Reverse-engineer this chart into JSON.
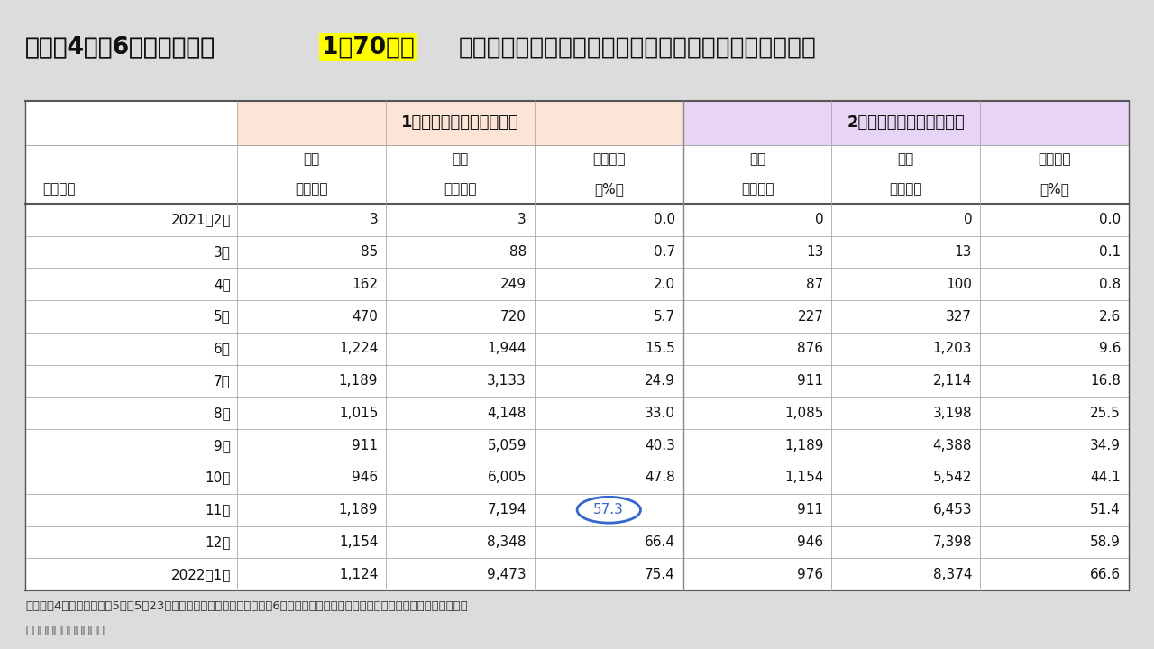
{
  "title_part1": "（図补4）　6月初め以降、",
  "title_highlight": "1日70万回",
  "title_part2": "の接種を継続的に実施するケースでの接種回数・接種率",
  "header1": "1回目のワクチン接種者数",
  "header2": "2回目のワクチン接種者数",
  "col_headers_row1": [
    "月間",
    "累積",
    "総人口比",
    "月間",
    "累積",
    "総人口比"
  ],
  "col_headers_row2": [
    "（万人）",
    "（万人）",
    "（%）",
    "（万人）",
    "（万人）",
    "（%）"
  ],
  "row_label_header": "（月末）",
  "rows": [
    {
      "label": "2021年2月",
      "v1": "3",
      "v2": "3",
      "v3": "0.0",
      "v4": "0",
      "v5": "0",
      "v6": "0.0"
    },
    {
      "label": "3月",
      "v1": "85",
      "v2": "88",
      "v3": "0.7",
      "v4": "13",
      "v5": "13",
      "v6": "0.1"
    },
    {
      "label": "4月",
      "v1": "162",
      "v2": "249",
      "v3": "2.0",
      "v4": "87",
      "v5": "100",
      "v6": "0.8"
    },
    {
      "label": "5月",
      "v1": "470",
      "v2": "720",
      "v3": "5.7",
      "v4": "227",
      "v5": "327",
      "v6": "2.6"
    },
    {
      "label": "6月",
      "v1": "1,224",
      "v2": "1,944",
      "v3": "15.5",
      "v4": "876",
      "v5": "1,203",
      "v6": "9.6"
    },
    {
      "label": "7月",
      "v1": "1,189",
      "v2": "3,133",
      "v3": "24.9",
      "v4": "911",
      "v5": "2,114",
      "v6": "16.8"
    },
    {
      "label": "8月",
      "v1": "1,015",
      "v2": "4,148",
      "v3": "33.0",
      "v4": "1,085",
      "v5": "3,198",
      "v6": "25.5"
    },
    {
      "label": "9月",
      "v1": "911",
      "v2": "5,059",
      "v3": "40.3",
      "v4": "1,189",
      "v5": "4,388",
      "v6": "34.9"
    },
    {
      "label": "10月",
      "v1": "946",
      "v2": "6,005",
      "v3": "47.8",
      "v4": "1,154",
      "v5": "5,542",
      "v6": "44.1"
    },
    {
      "label": "11月",
      "v1": "1,189",
      "v2": "7,194",
      "v3": "57.3",
      "v4": "911",
      "v5": "6,453",
      "v6": "51.4",
      "circle_v3": true
    },
    {
      "label": "12月",
      "v1": "1,154",
      "v2": "8,348",
      "v3": "66.4",
      "v4": "946",
      "v5": "7,398",
      "v6": "58.9"
    },
    {
      "label": "2022年1月",
      "v1": "1,124",
      "v2": "9,473",
      "v3": "75.4",
      "v4": "976",
      "v5": "8,374",
      "v6": "66.6"
    }
  ],
  "note": "（注）　4月までは実績。5月は5月23日までの実績を基にした推計値。6月以降は本文中の前提を用いてインベスコが試算した値。",
  "source": "（出所）インベスコ作成",
  "bg_color": "#dcdcdc",
  "table_bg": "#ffffff",
  "header1_bg": "#fce4d6",
  "header2_bg": "#e8d5f5",
  "title_highlight_bg": "#ffff00",
  "circle_color": "#3366cc"
}
